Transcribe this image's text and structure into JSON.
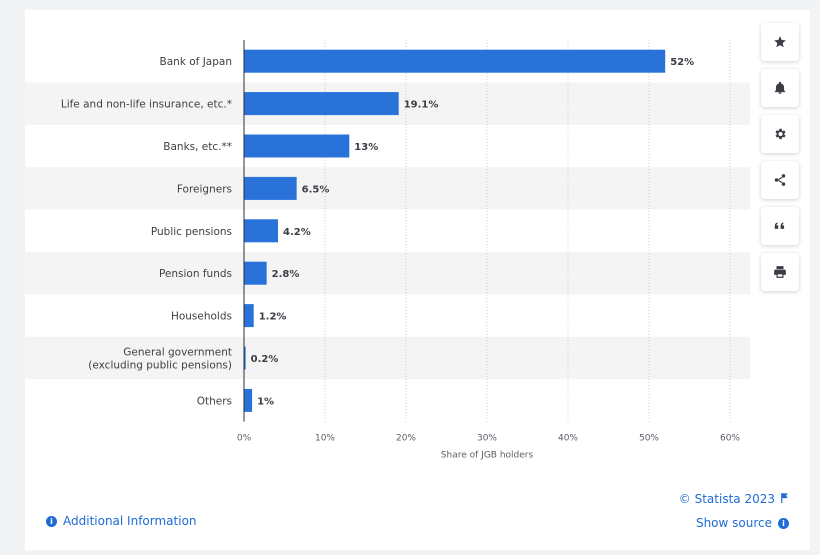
{
  "chart_data": {
    "type": "bar",
    "orientation": "horizontal",
    "categories": [
      "Bank of Japan",
      "Life and non-life insurance, etc.*",
      "Banks, etc.**",
      "Foreigners",
      "Public pensions",
      "Pension funds",
      "Households",
      "General government (excluding public pensions)",
      "Others"
    ],
    "category_lines": [
      [
        "Bank of Japan"
      ],
      [
        "Life and non-life insurance, etc.*"
      ],
      [
        "Banks, etc.**"
      ],
      [
        "Foreigners"
      ],
      [
        "Public pensions"
      ],
      [
        "Pension funds"
      ],
      [
        "Households"
      ],
      [
        "General government",
        "(excluding public pensions)"
      ],
      [
        "Others"
      ]
    ],
    "values": [
      52,
      19.1,
      13,
      6.5,
      4.2,
      2.8,
      1.2,
      0.2,
      1
    ],
    "value_labels": [
      "52%",
      "19.1%",
      "13%",
      "6.5%",
      "4.2%",
      "2.8%",
      "1.2%",
      "0.2%",
      "1%"
    ],
    "xlim": [
      0,
      60
    ],
    "ticks": [
      0,
      10,
      20,
      30,
      40,
      50,
      60
    ],
    "tick_labels": [
      "0%",
      "10%",
      "20%",
      "30%",
      "40%",
      "50%",
      "60%"
    ],
    "xlabel": "Share of JGB holders",
    "ylabel": "",
    "grid": true,
    "colors": {
      "bar": "#2872d9",
      "band": "#f4f4f4",
      "grid": "#c8ccd0"
    }
  },
  "toolbar": {
    "buttons": [
      {
        "name": "favorite",
        "icon": "star-icon"
      },
      {
        "name": "notification",
        "icon": "bell-icon"
      },
      {
        "name": "settings",
        "icon": "gear-icon"
      },
      {
        "name": "share",
        "icon": "share-icon"
      },
      {
        "name": "cite",
        "icon": "quote-icon"
      },
      {
        "name": "print",
        "icon": "printer-icon"
      }
    ]
  },
  "footer": {
    "additional_info": "Additional Information",
    "copyright": "© Statista 2023",
    "show_source": "Show source"
  }
}
